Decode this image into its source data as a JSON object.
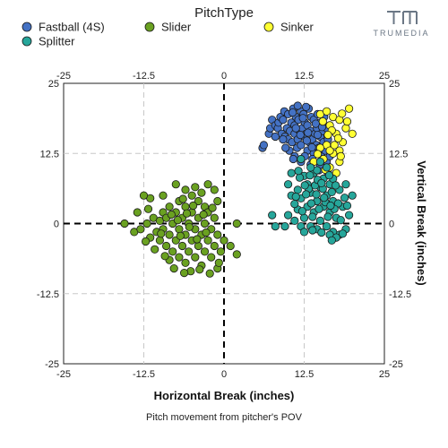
{
  "logo": {
    "text": "TRUMEDIA",
    "color": "#6b7785"
  },
  "chart_data": {
    "type": "scatter",
    "title": "",
    "legend_title": "PitchType",
    "legend_position": "top",
    "xlabel": "Horizontal Break (inches)",
    "ylabel": "Vertical Break (inches)",
    "caption": "Pitch movement from pitcher's POV",
    "xlim": [
      -25,
      25
    ],
    "ylim": [
      -25,
      25
    ],
    "x_ticks": [
      "-25",
      "-12.5",
      "0",
      "12.5",
      "25"
    ],
    "y_ticks": [
      "25",
      "12.5",
      "0",
      "-12.5",
      "-25"
    ],
    "grid": "dashed at ±12.5, bold dashed at 0",
    "series": [
      {
        "name": "Fastball (4S)",
        "color": "#4472c4",
        "points": [
          [
            6.0,
            13.5
          ],
          [
            6.2,
            14.0
          ],
          [
            7.0,
            16.0
          ],
          [
            7.2,
            17.0
          ],
          [
            7.5,
            18.5
          ],
          [
            8.0,
            17.5
          ],
          [
            8.4,
            17.0
          ],
          [
            8.5,
            18.0
          ],
          [
            8.8,
            19.0
          ],
          [
            9.0,
            16.0
          ],
          [
            9.2,
            18.5
          ],
          [
            9.4,
            20.0
          ],
          [
            9.5,
            15.5
          ],
          [
            9.8,
            17.0
          ],
          [
            10.0,
            15.0
          ],
          [
            10.0,
            19.5
          ],
          [
            10.3,
            16.5
          ],
          [
            10.5,
            18.0
          ],
          [
            10.6,
            14.5
          ],
          [
            10.8,
            20.5
          ],
          [
            11.0,
            16.0
          ],
          [
            11.0,
            17.5
          ],
          [
            11.2,
            19.0
          ],
          [
            11.4,
            13.5
          ],
          [
            11.5,
            15.0
          ],
          [
            11.6,
            18.5
          ],
          [
            11.8,
            16.5
          ],
          [
            12.0,
            20.0
          ],
          [
            12.0,
            14.0
          ],
          [
            12.2,
            17.0
          ],
          [
            12.4,
            19.5
          ],
          [
            12.5,
            15.5
          ],
          [
            12.6,
            18.0
          ],
          [
            12.8,
            16.0
          ],
          [
            13.0,
            13.0
          ],
          [
            13.0,
            17.5
          ],
          [
            13.2,
            20.5
          ],
          [
            13.3,
            14.5
          ],
          [
            13.5,
            16.5
          ],
          [
            13.6,
            19.0
          ],
          [
            13.8,
            15.0
          ],
          [
            14.0,
            18.5
          ],
          [
            14.0,
            12.5
          ],
          [
            14.2,
            16.0
          ],
          [
            14.4,
            14.0
          ],
          [
            14.5,
            17.0
          ],
          [
            14.6,
            19.5
          ],
          [
            14.8,
            13.5
          ],
          [
            15.0,
            15.5
          ],
          [
            15.0,
            18.0
          ],
          [
            15.2,
            12.0
          ],
          [
            15.4,
            16.5
          ],
          [
            15.5,
            14.5
          ],
          [
            15.6,
            19.0
          ],
          [
            15.8,
            13.0
          ],
          [
            16.0,
            17.0
          ],
          [
            16.0,
            11.0
          ],
          [
            16.2,
            15.0
          ],
          [
            16.5,
            12.0
          ],
          [
            12.0,
            11.0
          ],
          [
            11.0,
            12.0
          ],
          [
            13.5,
            10.5
          ],
          [
            14.8,
            9.5
          ],
          [
            16.2,
            9.0
          ],
          [
            11.5,
            21.0
          ],
          [
            12.8,
            20.8
          ],
          [
            10.2,
            13.0
          ],
          [
            9.6,
            13.5
          ],
          [
            10.8,
            11.5
          ],
          [
            12.6,
            12.0
          ],
          [
            13.8,
            11.5
          ],
          [
            15.0,
            10.5
          ],
          [
            9.2,
            15.0
          ],
          [
            8.0,
            15.5
          ],
          [
            11.2,
            17.0
          ],
          [
            12.3,
            18.8
          ],
          [
            13.1,
            16.2
          ],
          [
            14.3,
            17.8
          ],
          [
            15.3,
            17.2
          ],
          [
            10.7,
            19.8
          ],
          [
            11.9,
            15.8
          ],
          [
            13.7,
            13.6
          ],
          [
            12.9,
            14.8
          ],
          [
            14.6,
            15.8
          ]
        ]
      },
      {
        "name": "Slider",
        "color": "#6aa121",
        "points": [
          [
            -15.5,
            0.0
          ],
          [
            -14.0,
            -1.5
          ],
          [
            -13.0,
            -1.0
          ],
          [
            -12.0,
            0.0
          ],
          [
            -11.5,
            -2.5
          ],
          [
            -11.0,
            1.0
          ],
          [
            -10.5,
            -1.5
          ],
          [
            -10.0,
            0.5
          ],
          [
            -10.0,
            -3.0
          ],
          [
            -9.5,
            2.0
          ],
          [
            -9.5,
            -1.0
          ],
          [
            -9.0,
            -4.0
          ],
          [
            -9.0,
            1.0
          ],
          [
            -8.5,
            -2.0
          ],
          [
            -8.5,
            3.0
          ],
          [
            -8.0,
            0.0
          ],
          [
            -8.0,
            -5.0
          ],
          [
            -7.5,
            -3.0
          ],
          [
            -7.5,
            2.0
          ],
          [
            -7.0,
            -1.0
          ],
          [
            -7.0,
            4.0
          ],
          [
            -7.0,
            -6.0
          ],
          [
            -6.5,
            1.0
          ],
          [
            -6.5,
            -4.0
          ],
          [
            -6.0,
            -2.0
          ],
          [
            -6.0,
            3.0
          ],
          [
            -6.0,
            -7.0
          ],
          [
            -5.5,
            0.0
          ],
          [
            -5.5,
            -5.0
          ],
          [
            -5.0,
            2.0
          ],
          [
            -5.0,
            -3.0
          ],
          [
            -5.0,
            5.0
          ],
          [
            -4.5,
            -1.0
          ],
          [
            -4.5,
            -6.0
          ],
          [
            -4.0,
            1.0
          ],
          [
            -4.0,
            -4.0
          ],
          [
            -4.0,
            4.0
          ],
          [
            -3.5,
            -2.0
          ],
          [
            -3.5,
            -7.5
          ],
          [
            -3.0,
            0.0
          ],
          [
            -3.0,
            3.0
          ],
          [
            -3.0,
            -5.0
          ],
          [
            -2.5,
            -3.0
          ],
          [
            -2.5,
            2.0
          ],
          [
            -2.0,
            -1.0
          ],
          [
            -2.0,
            -6.0
          ],
          [
            -1.5,
            1.0
          ],
          [
            -1.5,
            -4.0
          ],
          [
            -1.0,
            -2.0
          ],
          [
            -1.0,
            -8.0
          ],
          [
            -0.5,
            -5.0
          ],
          [
            0.0,
            -3.0
          ],
          [
            1.0,
            -4.0
          ],
          [
            2.0,
            0.0
          ],
          [
            2.0,
            -5.5
          ],
          [
            -7.5,
            7.0
          ],
          [
            -6.0,
            6.0
          ],
          [
            -4.5,
            6.5
          ],
          [
            -3.5,
            5.5
          ],
          [
            -2.5,
            7.0
          ],
          [
            -1.5,
            6.0
          ],
          [
            -1.0,
            4.0
          ],
          [
            -0.8,
            -7.0
          ],
          [
            -8.5,
            -6.5
          ],
          [
            -9.5,
            5.0
          ],
          [
            -11.5,
            4.5
          ],
          [
            -12.5,
            5.0
          ],
          [
            -13.5,
            2.0
          ],
          [
            -7.8,
            -8.0
          ],
          [
            -5.2,
            -8.5
          ],
          [
            -3.8,
            -8.2
          ],
          [
            -6.2,
            -8.8
          ],
          [
            -2.2,
            -8.9
          ],
          [
            -10.8,
            -4.6
          ],
          [
            -12.2,
            -3.2
          ],
          [
            -9.2,
            -5.8
          ],
          [
            -11.8,
            2.6
          ],
          [
            -4.2,
            -2.8
          ],
          [
            -6.8,
            -2.2
          ],
          [
            -5.8,
            1.8
          ],
          [
            -3.2,
            1.6
          ],
          [
            -7.2,
            0.6
          ],
          [
            -8.2,
            1.6
          ],
          [
            -2.8,
            -1.6
          ],
          [
            -5.4,
            -0.6
          ],
          [
            -9.8,
            -1.8
          ],
          [
            -6.4,
            4.4
          ],
          [
            -4.8,
            3.2
          ],
          [
            -1.8,
            2.8
          ]
        ]
      },
      {
        "name": "Sinker",
        "color": "#ffff33",
        "points": [
          [
            15.0,
            19.5
          ],
          [
            16.0,
            20.0
          ],
          [
            16.5,
            17.5
          ],
          [
            17.0,
            19.0
          ],
          [
            17.5,
            16.0
          ],
          [
            18.0,
            18.5
          ],
          [
            18.5,
            14.5
          ],
          [
            18.0,
            13.0
          ],
          [
            19.0,
            17.0
          ],
          [
            19.5,
            20.5
          ],
          [
            20.0,
            16.0
          ],
          [
            17.0,
            12.5
          ],
          [
            18.0,
            11.0
          ],
          [
            16.5,
            10.0
          ],
          [
            17.5,
            9.0
          ],
          [
            15.5,
            11.5
          ],
          [
            16.0,
            14.0
          ],
          [
            16.5,
            13.0
          ],
          [
            15.0,
            13.5
          ],
          [
            14.0,
            11.0
          ],
          [
            17.8,
            15.2
          ],
          [
            16.8,
            16.6
          ],
          [
            18.4,
            19.6
          ],
          [
            19.2,
            18.2
          ],
          [
            15.4,
            18.2
          ],
          [
            16.2,
            15.8
          ],
          [
            17.2,
            14.0
          ],
          [
            18.2,
            12.0
          ],
          [
            15.8,
            9.6
          ],
          [
            14.6,
            12.4
          ]
        ]
      },
      {
        "name": "Splitter",
        "color": "#26a69a",
        "points": [
          [
            20.0,
            5.0
          ],
          [
            19.5,
            1.5
          ],
          [
            19.0,
            -1.0
          ],
          [
            18.5,
            3.0
          ],
          [
            18.0,
            -2.0
          ],
          [
            18.0,
            6.0
          ],
          [
            17.5,
            1.0
          ],
          [
            17.0,
            4.0
          ],
          [
            17.0,
            -1.5
          ],
          [
            16.5,
            7.0
          ],
          [
            16.5,
            2.0
          ],
          [
            16.0,
            -0.5
          ],
          [
            16.0,
            5.0
          ],
          [
            15.5,
            8.0
          ],
          [
            15.5,
            3.0
          ],
          [
            15.0,
            0.5
          ],
          [
            15.0,
            6.5
          ],
          [
            14.5,
            4.0
          ],
          [
            14.5,
            -1.0
          ],
          [
            14.0,
            9.0
          ],
          [
            14.0,
            2.0
          ],
          [
            13.5,
            5.5
          ],
          [
            13.5,
            -0.5
          ],
          [
            13.0,
            7.0
          ],
          [
            13.0,
            3.0
          ],
          [
            12.5,
            1.0
          ],
          [
            12.5,
            8.5
          ],
          [
            12.0,
            4.5
          ],
          [
            12.0,
            -0.5
          ],
          [
            11.5,
            6.0
          ],
          [
            11.5,
            2.5
          ],
          [
            11.0,
            3.5
          ],
          [
            10.5,
            5.0
          ],
          [
            10.0,
            1.5
          ],
          [
            9.5,
            -0.5
          ],
          [
            10.0,
            7.0
          ],
          [
            10.5,
            9.0
          ],
          [
            11.0,
            0.5
          ],
          [
            8.0,
            -0.5
          ],
          [
            7.5,
            1.5
          ],
          [
            12.5,
            -1.5
          ],
          [
            16.5,
            -2.0
          ],
          [
            17.5,
            -2.5
          ],
          [
            18.5,
            -1.8
          ],
          [
            19.0,
            7.0
          ],
          [
            17.0,
            8.0
          ],
          [
            16.0,
            10.0
          ],
          [
            15.0,
            11.0
          ],
          [
            14.5,
            9.5
          ],
          [
            13.5,
            10.0
          ],
          [
            12.0,
            11.5
          ],
          [
            11.8,
            8.2
          ],
          [
            13.2,
            6.2
          ],
          [
            14.2,
            6.8
          ],
          [
            15.8,
            3.8
          ],
          [
            16.8,
            5.6
          ],
          [
            17.8,
            3.6
          ],
          [
            18.8,
            4.6
          ],
          [
            12.2,
            2.2
          ],
          [
            13.8,
            1.2
          ],
          [
            14.8,
            2.6
          ],
          [
            15.2,
            -1.6
          ],
          [
            16.2,
            1.2
          ],
          [
            17.2,
            2.6
          ],
          [
            18.2,
            0.6
          ],
          [
            19.2,
            3.2
          ],
          [
            11.2,
            4.8
          ],
          [
            12.8,
            5.2
          ],
          [
            13.6,
            3.6
          ],
          [
            14.4,
            5.2
          ],
          [
            15.6,
            4.6
          ],
          [
            16.6,
            3.2
          ],
          [
            11.6,
            9.4
          ],
          [
            12.6,
            6.8
          ],
          [
            13.4,
            8.6
          ],
          [
            14.6,
            7.8
          ],
          [
            15.4,
            6.2
          ],
          [
            16.4,
            8.6
          ],
          [
            17.4,
            6.8
          ],
          [
            16.8,
            -3.0
          ],
          [
            15.2,
            7.2
          ],
          [
            13.8,
            -1.2
          ]
        ]
      }
    ]
  }
}
